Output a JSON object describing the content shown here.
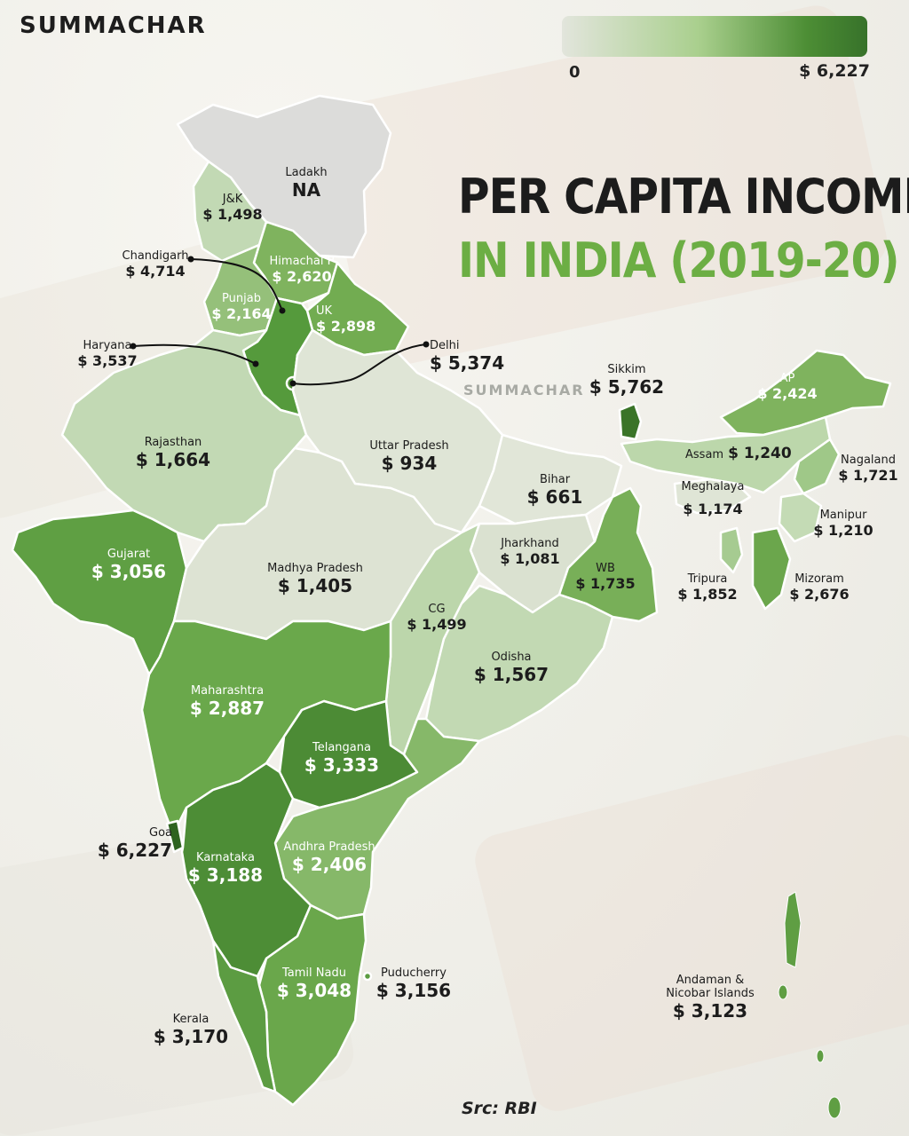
{
  "brand": "SUMMACHAR",
  "watermark": "SUMMACHAR",
  "title_line1": "PER CAPITA INCOME",
  "title_line2": "IN INDIA (2019-20)",
  "legend": {
    "min_label": "0",
    "max_label": "$ 6,227",
    "color_low": "#e2e5dc",
    "color_high": "#37722a"
  },
  "source": "Src: RBI",
  "colors": {
    "title_green": "#6cae44",
    "outline": "#ffffff",
    "leader_line": "#111111"
  },
  "regions": {
    "ladakh": {
      "name": "Ladakh",
      "value": "NA"
    },
    "jk": {
      "name": "J&K",
      "value": "$ 1,498"
    },
    "himachal": {
      "name": "Himachal P",
      "value": "$ 2,620"
    },
    "chandigarh": {
      "name": "Chandigarh",
      "value": "$ 4,714"
    },
    "punjab": {
      "name": "Punjab",
      "value": "$ 2,164"
    },
    "uk": {
      "name": "UK",
      "value": "$ 2,898"
    },
    "haryana": {
      "name": "Haryana",
      "value": "$ 3,537"
    },
    "delhi": {
      "name": "Delhi",
      "value": "$ 5,374"
    },
    "sikkim": {
      "name": "Sikkim",
      "value": "$ 5,762"
    },
    "arunachal": {
      "name": "AP",
      "value": "$ 2,424"
    },
    "rajasthan": {
      "name": "Rajasthan",
      "value": "$ 1,664"
    },
    "up": {
      "name": "Uttar Pradesh",
      "value": "$ 934"
    },
    "bihar": {
      "name": "Bihar",
      "value": "$ 661"
    },
    "assam": {
      "name": "Assam",
      "value": "$ 1,240"
    },
    "nagaland": {
      "name": "Nagaland",
      "value": "$ 1,721"
    },
    "meghalaya": {
      "name": "Meghalaya",
      "value": "$ 1,174"
    },
    "manipur": {
      "name": "Manipur",
      "value": "$ 1,210"
    },
    "gujarat": {
      "name": "Gujarat",
      "value": "$ 3,056"
    },
    "mp": {
      "name": "Madhya Pradesh",
      "value": "$ 1,405"
    },
    "jharkhand": {
      "name": "Jharkhand",
      "value": "$ 1,081"
    },
    "wb": {
      "name": "WB",
      "value": "$ 1,735"
    },
    "tripura": {
      "name": "Tripura",
      "value": "$ 1,852"
    },
    "mizoram": {
      "name": "Mizoram",
      "value": "$ 2,676"
    },
    "cg": {
      "name": "CG",
      "value": "$ 1,499"
    },
    "odisha": {
      "name": "Odisha",
      "value": "$ 1,567"
    },
    "maharashtra": {
      "name": "Maharashtra",
      "value": "$ 2,887"
    },
    "telangana": {
      "name": "Telangana",
      "value": "$ 3,333"
    },
    "goa": {
      "name": "Goa",
      "value": "$ 6,227"
    },
    "karnataka": {
      "name": "Karnataka",
      "value": "$ 3,188"
    },
    "ap_south": {
      "name": "Andhra Pradesh",
      "value": "$ 2,406"
    },
    "tamilnadu": {
      "name": "Tamil Nadu",
      "value": "$ 3,048"
    },
    "puducherry": {
      "name": "Puducherry",
      "value": "$ 3,156"
    },
    "kerala": {
      "name": "Kerala",
      "value": "$ 3,170"
    },
    "andaman": {
      "name_line1": "Andaman &",
      "name_line2": "Nicobar Islands",
      "value": "$ 3,123"
    }
  }
}
